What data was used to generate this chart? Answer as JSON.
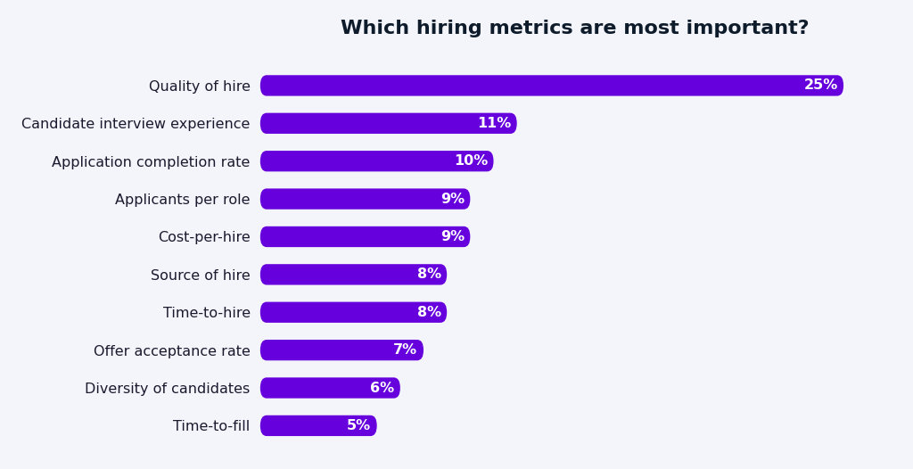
{
  "title": "Which hiring metrics are most important?",
  "categories": [
    "Quality of hire",
    "Candidate interview experience",
    "Application completion rate",
    "Applicants per role",
    "Cost-per-hire",
    "Source of hire",
    "Time-to-hire",
    "Offer acceptance rate",
    "Diversity of candidates",
    "Time-to-fill"
  ],
  "values": [
    25,
    11,
    10,
    9,
    9,
    8,
    8,
    7,
    6,
    5
  ],
  "bar_color": "#6600DD",
  "label_color": "#ffffff",
  "title_color": "#0d1b2a",
  "category_color": "#1a1a2e",
  "background_color": "#f4f4fb",
  "xlim": [
    0,
    27
  ],
  "bar_height": 0.55,
  "title_fontsize": 16,
  "label_fontsize": 11.5,
  "category_fontsize": 11.5
}
